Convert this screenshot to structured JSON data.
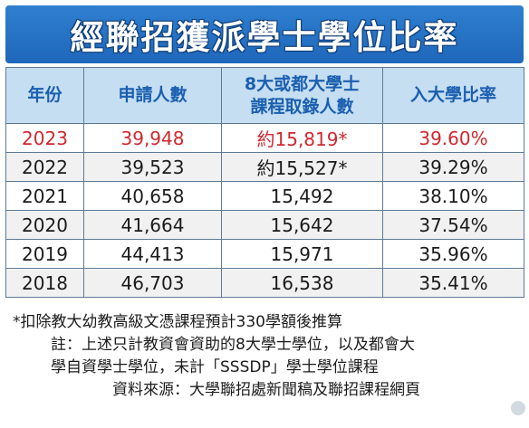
{
  "title": "經聯招獲派學士學位比率",
  "table": {
    "headers": {
      "year": "年份",
      "applicants": "申請人數",
      "admitted_line1": "8大或都大學士",
      "admitted_line2": "課程取錄人數",
      "ratio": "入大學比率"
    },
    "rows": [
      {
        "year": "2023",
        "applicants": "39,948",
        "admitted": "約15,819*",
        "ratio": "39.60%"
      },
      {
        "year": "2022",
        "applicants": "39,523",
        "admitted": "約15,527*",
        "ratio": "39.29%"
      },
      {
        "year": "2021",
        "applicants": "40,658",
        "admitted": "15,492",
        "ratio": "38.10%"
      },
      {
        "year": "2020",
        "applicants": "41,664",
        "admitted": "15,642",
        "ratio": "37.54%"
      },
      {
        "year": "2019",
        "applicants": "44,413",
        "admitted": "15,971",
        "ratio": "35.96%"
      },
      {
        "year": "2018",
        "applicants": "46,703",
        "admitted": "16,538",
        "ratio": "35.41%"
      }
    ],
    "highlight_color": "#d0282e",
    "header_bg": "#c6def2",
    "header_text_color": "#1a5fb0"
  },
  "notes": {
    "line1": "*扣除教大幼教高級文憑課程預計330學額後推算",
    "line2": "註：上述只計教資會資助的8大學士學位，以及都會大",
    "line3": "學自資學士學位，未計「SSSDP」學士學位課程",
    "line4": "資料來源：大學聯招處新聞稿及聯招課程網頁"
  },
  "title_band_color": "#2272c3"
}
